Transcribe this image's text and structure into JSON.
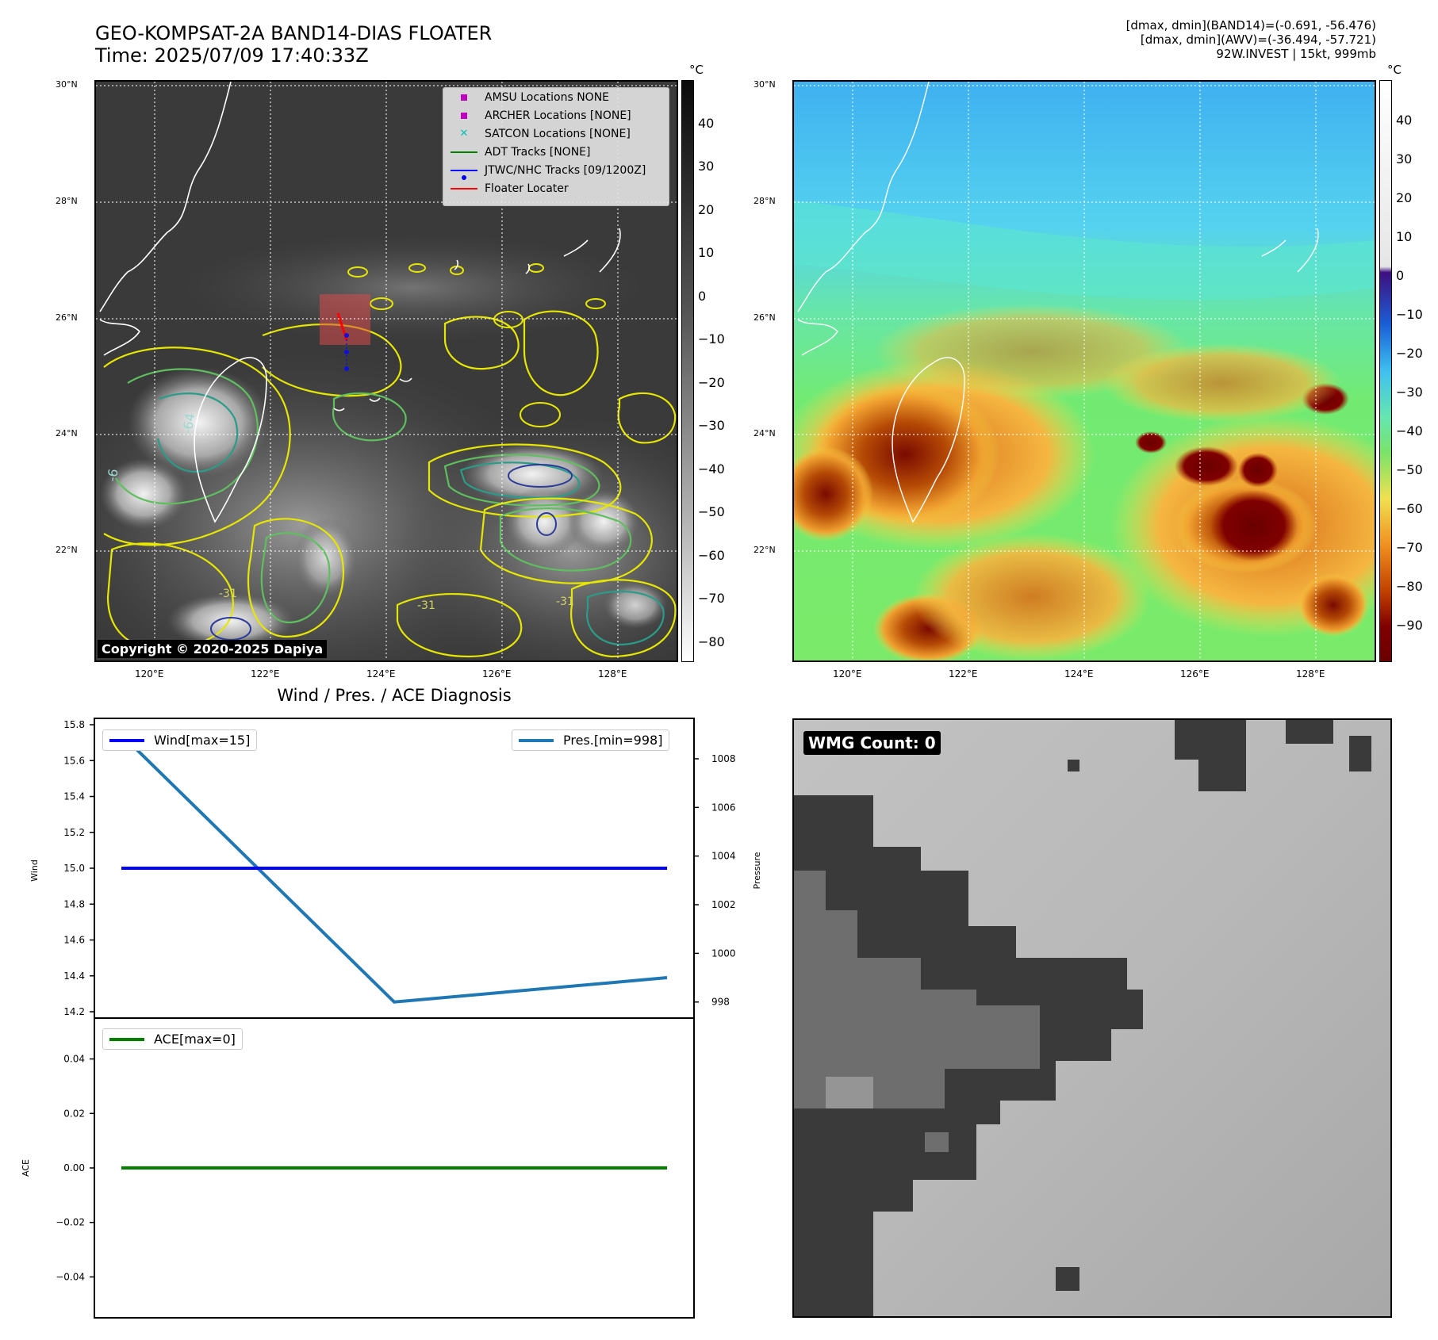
{
  "header": {
    "title_line1": "GEO-KOMPSAT-2A BAND14-DIAS FLOATER",
    "title_line2": "Time: 2025/07/09 17:40:33Z",
    "info_line1": "[dmax, dmin](BAND14)=(-0.691, -56.476)",
    "info_line2": "[dmax, dmin](AWV)=(-36.494, -57.721)",
    "info_line3": "92W.INVEST | 15kt, 999mb"
  },
  "map_axes": {
    "lat_labels": [
      "30°N",
      "28°N",
      "26°N",
      "24°N",
      "22°N"
    ],
    "lon_labels": [
      "120°E",
      "122°E",
      "124°E",
      "126°E",
      "128°E"
    ]
  },
  "ir_panel": {
    "colorbar_unit": "°C",
    "colorbar_ticks": [
      "40",
      "30",
      "20",
      "10",
      "0",
      "−10",
      "−20",
      "−30",
      "−40",
      "−50",
      "−60",
      "−70",
      "−80"
    ],
    "legend": [
      {
        "label": "AMSU Locations NONE",
        "icon": "square-marker",
        "color": "#bf00bf"
      },
      {
        "label": "ARCHER Locations [NONE]",
        "icon": "square-marker",
        "color": "#bf00bf"
      },
      {
        "label": "SATCON Locations [NONE]",
        "icon": "x-marker",
        "color": "#00bfbf"
      },
      {
        "label": "ADT Tracks [NONE]",
        "icon": "line",
        "color": "#008000"
      },
      {
        "label": "JTWC/NHC Tracks [09/1200Z]",
        "icon": "line-dot",
        "color": "#0000ff"
      },
      {
        "label": "Floater Locater",
        "icon": "line",
        "color": "#ff0000"
      }
    ],
    "contour_labels": [
      "-64",
      "-6",
      "-31",
      "-31",
      "-31"
    ],
    "copyright": "Copyright © 2020-2025 Dapiya"
  },
  "awv_panel": {
    "colorbar_unit": "°C",
    "colorbar_ticks": [
      "40",
      "30",
      "20",
      "10",
      "0",
      "−10",
      "−20",
      "−30",
      "−40",
      "−50",
      "−60",
      "−70",
      "−80",
      "−90"
    ]
  },
  "diagnosis": {
    "title": "Wind / Pres. / ACE Diagnosis",
    "wind_legend": "Wind[max=15]",
    "pres_legend": "Pres.[min=998]",
    "ace_legend": "ACE[max=0]",
    "wind_ylabel": "Wind",
    "pres_ylabel": "Pressure",
    "ace_ylabel": "ACE",
    "wind_color": "#0000ff",
    "pres_color": "#1f77b4",
    "ace_color": "#008000"
  },
  "wmg_panel": {
    "label": "WMG Count: 0"
  },
  "chart_data": [
    {
      "type": "line",
      "title": "Wind / Pres. / ACE Diagnosis",
      "ylabel": "Wind",
      "ylim": [
        14.2,
        15.8
      ],
      "yticks": [
        "15.8",
        "15.6",
        "15.4",
        "15.2",
        "15.0",
        "14.8",
        "14.6",
        "14.4",
        "14.2"
      ],
      "x": [
        0,
        1,
        2
      ],
      "series": [
        {
          "name": "Wind[max=15]",
          "values": [
            15,
            15,
            15
          ]
        }
      ]
    },
    {
      "type": "line",
      "ylabel": "Pressure",
      "ylim": [
        997.6,
        1009.4
      ],
      "yticks": [
        "1008",
        "1006",
        "1004",
        "1002",
        "1000",
        "998"
      ],
      "x": [
        0,
        1,
        2
      ],
      "series": [
        {
          "name": "Pres.[min=998]",
          "values": [
            1009,
            998,
            999
          ]
        }
      ]
    },
    {
      "type": "line",
      "ylabel": "ACE",
      "ylim": [
        -0.055,
        0.055
      ],
      "yticks": [
        "0.04",
        "0.02",
        "0.00",
        "−0.02",
        "−0.04"
      ],
      "x": [
        0,
        1,
        2
      ],
      "series": [
        {
          "name": "ACE[max=0]",
          "values": [
            0,
            0,
            0
          ]
        }
      ]
    }
  ]
}
